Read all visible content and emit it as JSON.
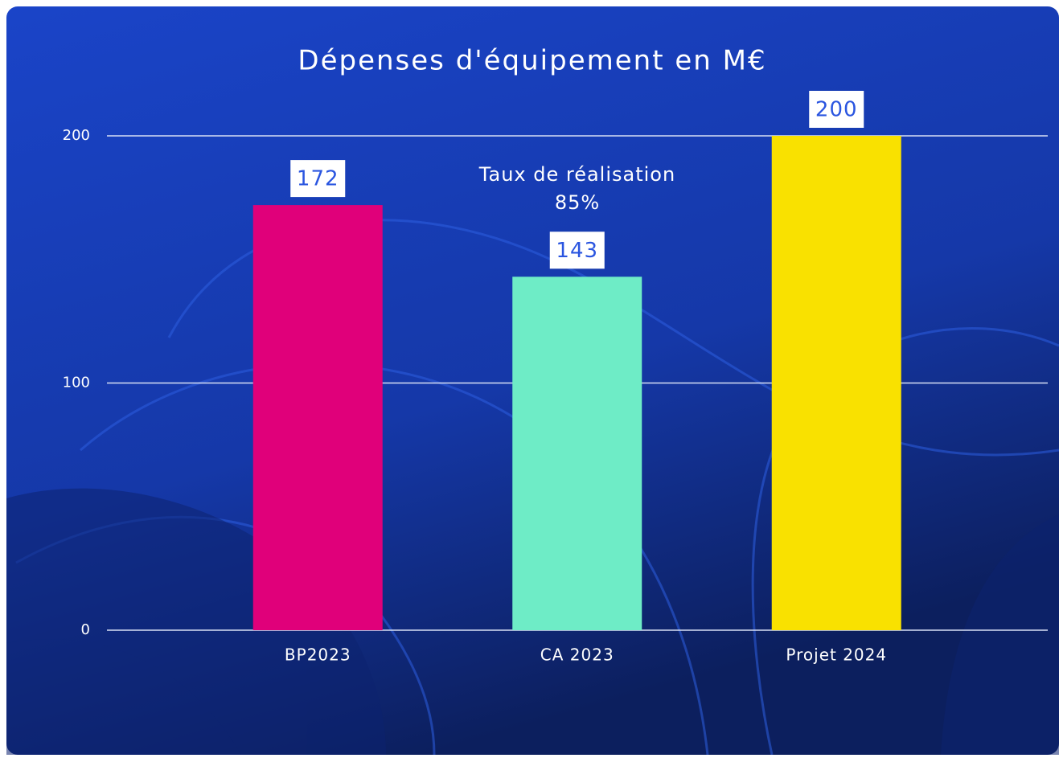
{
  "chart_data": {
    "type": "bar",
    "title": "Dépenses d'équipement en M€",
    "categories": [
      "BP2023",
      "CA 2023",
      "Projet 2024"
    ],
    "values": [
      172,
      143,
      200
    ],
    "colors": [
      "#e0007a",
      "#6eecc6",
      "#f9e100"
    ],
    "ylim": [
      0,
      200
    ],
    "yticks": [
      0,
      100,
      200
    ],
    "grid": true,
    "annotation": [
      "Taux de réalisation",
      "85%"
    ]
  }
}
